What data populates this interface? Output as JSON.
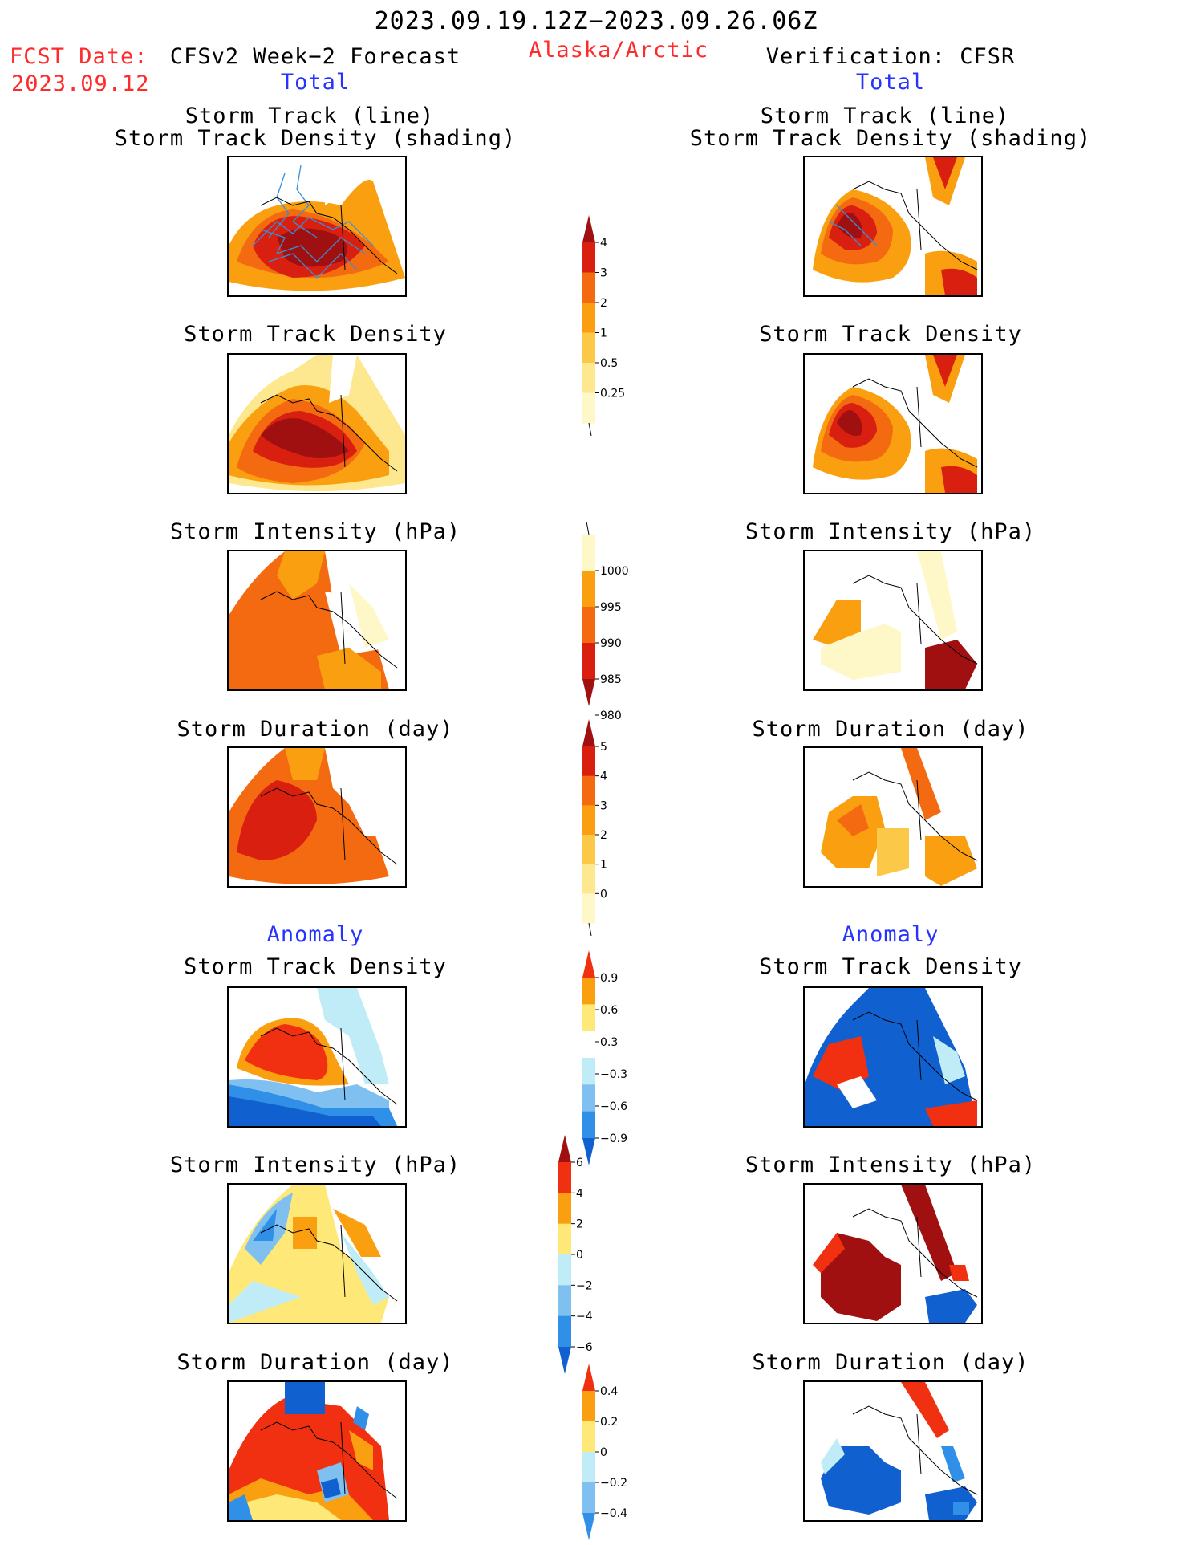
{
  "header": {
    "date_range": "2023.09.19.12Z−2023.09.26.06Z",
    "region": "Alaska/Arctic",
    "fcst_label": "FCST Date:",
    "fcst_date": "2023.09.12",
    "forecast_title": "CFSv2 Week−2 Forecast",
    "verification_title": "Verification: CFSR",
    "total_label": "Total",
    "anomaly_label": "Anomaly"
  },
  "panels": {
    "track_line": "Storm Track (line)",
    "track_shading": "Storm Track Density (shading)",
    "track_density": "Storm Track Density",
    "intensity": "Storm Intensity (hPa)",
    "duration": "Storm Duration (day)"
  },
  "colorbars": [
    {
      "id": "total-density",
      "ticks": [
        "4",
        "3",
        "2",
        "1",
        "0.5",
        "0.25"
      ],
      "colors": [
        "#a01010",
        "#d92010",
        "#f46a10",
        "#faa010",
        "#fbc848",
        "#fde890",
        "#fef8c8"
      ],
      "arrow_top": true,
      "arrow_bottom": false
    },
    {
      "id": "total-intensity",
      "ticks": [
        "1000",
        "995",
        "990",
        "985",
        "980"
      ],
      "colors": [
        "#fef8c8",
        "#faa010",
        "#f46a10",
        "#d92010",
        "#a01010"
      ],
      "arrow_top": false,
      "arrow_bottom": true
    },
    {
      "id": "total-duration",
      "ticks": [
        "5",
        "4",
        "3",
        "2",
        "1",
        "0"
      ],
      "colors": [
        "#a01010",
        "#d92010",
        "#f46a10",
        "#faa010",
        "#fbc848",
        "#fde890",
        "#fef8c8"
      ],
      "arrow_top": true,
      "arrow_bottom": false
    },
    {
      "id": "anom-density",
      "ticks": [
        "0.9",
        "0.6",
        "0.3",
        "−0.3",
        "−0.6",
        "−0.9"
      ],
      "colors": [
        "#f03010",
        "#faa010",
        "#fde878",
        "#ffffff",
        "#c0ecf8",
        "#80c0f0",
        "#3090e8",
        "#1060d0"
      ],
      "arrow_top": true,
      "arrow_bottom": true
    },
    {
      "id": "anom-intensity",
      "ticks": [
        "6",
        "4",
        "2",
        "0",
        "−2",
        "−4",
        "−6"
      ],
      "colors": [
        "#a01010",
        "#f03010",
        "#faa010",
        "#fde878",
        "#c0ecf8",
        "#80c0f0",
        "#3090e8",
        "#1060d0"
      ],
      "arrow_top": true,
      "arrow_bottom": true
    },
    {
      "id": "anom-duration",
      "ticks": [
        "0.4",
        "0.2",
        "0",
        "−0.2",
        "−0.4"
      ],
      "colors": [
        "#f03010",
        "#faa010",
        "#fde878",
        "#c0ecf8",
        "#80c0f0",
        "#3090e8"
      ],
      "arrow_top": true,
      "arrow_bottom": true
    }
  ]
}
